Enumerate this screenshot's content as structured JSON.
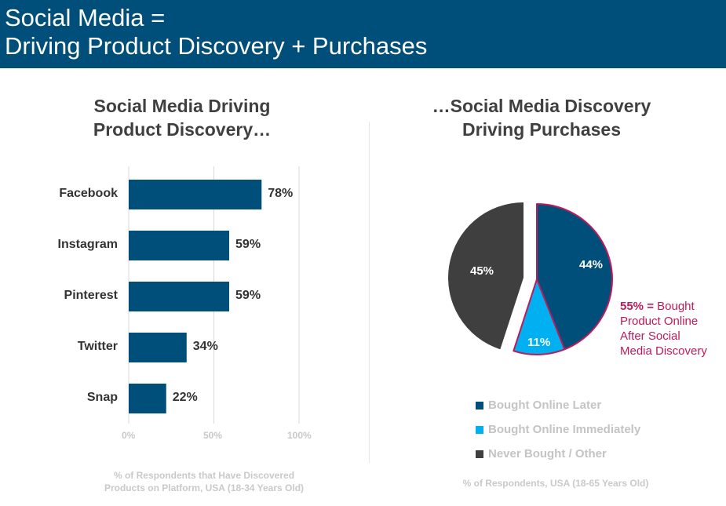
{
  "header": {
    "line1": "Social Media =",
    "line2": "Driving Product Discovery + Purchases",
    "background": "#004f7a"
  },
  "chart_data": [
    {
      "type": "bar",
      "orientation": "horizontal",
      "title_line1": "Social Media Driving",
      "title_line2": "Product Discovery…",
      "categories": [
        "Facebook",
        "Instagram",
        "Pinterest",
        "Twitter",
        "Snap"
      ],
      "values": [
        78,
        59,
        59,
        34,
        22
      ],
      "value_labels": [
        "78%",
        "59%",
        "59%",
        "34%",
        "22%"
      ],
      "xlim": [
        0,
        100
      ],
      "xticks": [
        "0%",
        "50%",
        "100%"
      ],
      "grid": true,
      "color": "#004f7a",
      "note_line1": "% of Respondents that Have Discovered",
      "note_line2": "Products on Platform, USA (18-34 Years Old)"
    },
    {
      "type": "pie",
      "title_line1": "…Social Media Discovery",
      "title_line2": "Driving Purchases",
      "slices": [
        {
          "name": "Bought Online Later",
          "value": 44,
          "label": "44%",
          "color": "#004f7a"
        },
        {
          "name": "Bought Online Immediately",
          "value": 11,
          "label": "11%",
          "color": "#00b0f0"
        },
        {
          "name": "Never Bought / Other",
          "value": 45,
          "label": "45%",
          "color": "#3f3f3f"
        }
      ],
      "highlight_color": "#c0195a",
      "callout_value": "55% =",
      "callout_line1": "Bought",
      "callout_line2": "Product Online",
      "callout_line3": "After Social",
      "callout_line4": "Media Discovery",
      "legend_position": "bottom",
      "note": "% of Respondents, USA (18-65 Years Old)"
    }
  ]
}
